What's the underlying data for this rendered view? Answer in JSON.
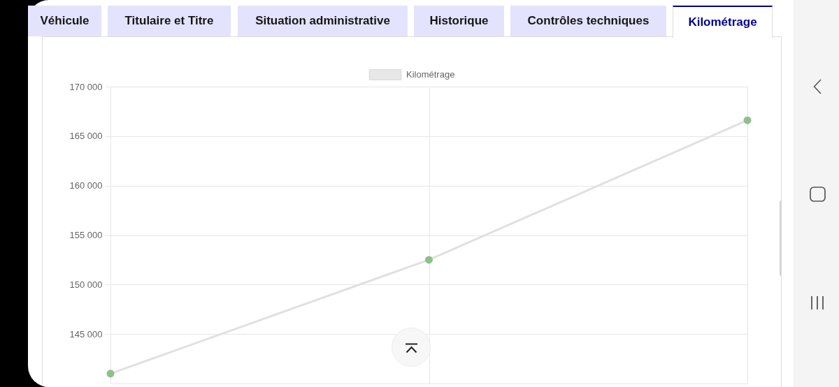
{
  "chart_data": {
    "type": "line",
    "categories": [
      null,
      null,
      null
    ],
    "series": [
      {
        "name": "Kilométrage",
        "color": "#e0e0e0",
        "colors": [
          "#8fbf8b",
          "#8fbf8b",
          "#8fbf8b"
        ],
        "values": [
          141000,
          152500,
          166600
        ]
      }
    ],
    "ylim": [
      140000,
      170000
    ],
    "yticks": [
      {
        "value": 145000,
        "label": "145 000"
      },
      {
        "value": 150000,
        "label": "150 000"
      },
      {
        "value": 155000,
        "label": "155 000"
      },
      {
        "value": 160000,
        "label": "160 000"
      },
      {
        "value": 165000,
        "label": "165 000"
      },
      {
        "value": 170000,
        "label": "170 000"
      }
    ],
    "tick_labels": "y",
    "grid": true,
    "legend": "top",
    "marker": "circle",
    "annotations": [
      "Véhicule",
      "Titulaire et Titre",
      "Situation administrative",
      "Historique",
      "Contrôles techniques",
      "Kilométrage"
    ]
  }
}
